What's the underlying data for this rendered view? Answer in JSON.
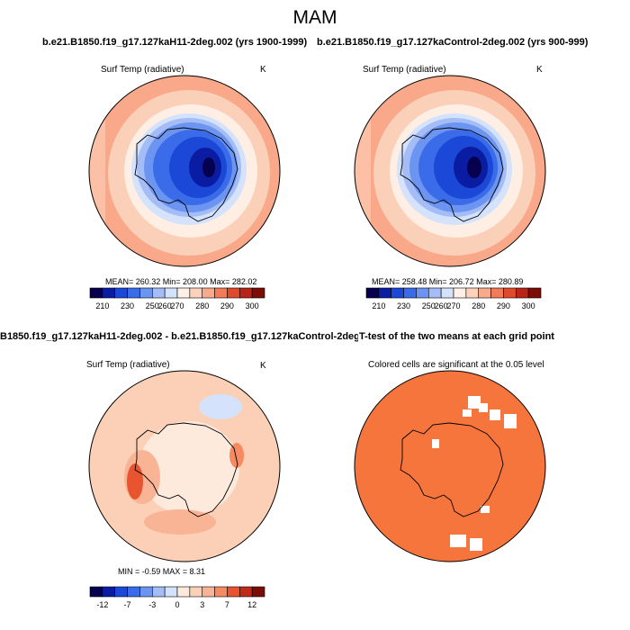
{
  "title": "MAM",
  "colors": {
    "temp_scale": [
      "#06004e",
      "#0a1ca2",
      "#1b48d6",
      "#3a6ce9",
      "#6c94f1",
      "#a4bdf6",
      "#d4e2fb",
      "#fff0e6",
      "#fcd2bd",
      "#f8aa8c",
      "#f37b58",
      "#e04a2c",
      "#b82518",
      "#7b0c06"
    ],
    "diff_scale": [
      "#06004e",
      "#0a1ca2",
      "#1b48d6",
      "#3a6ce9",
      "#6c94f1",
      "#a4bdf6",
      "#d4e2fb",
      "#fdeadd",
      "#fbd0b7",
      "#f9b495",
      "#f58a63",
      "#e8542f",
      "#c02b17",
      "#7b0c06"
    ],
    "significant": "#f5753d"
  },
  "panels": {
    "top_left": {
      "header": "b.e21.B1850.f19_g17.127kaH11-2deg.002 (yrs 1900-1999)",
      "variable": "Surf Temp (radiative)",
      "units": "K",
      "stats": "MEAN= 260.32  Min= 208.00  Max= 282.02",
      "colorbar_labels": [
        "210",
        "230",
        "250",
        "260",
        "270",
        "280",
        "290",
        "300"
      ]
    },
    "top_right": {
      "header": "b.e21.B1850.f19_g17.127kaControl-2deg.002 (yrs 900-999)",
      "variable": "Surf Temp (radiative)",
      "units": "K",
      "stats": "MEAN= 258.48  Min= 206.72  Max= 280.89",
      "colorbar_labels": [
        "210",
        "230",
        "250",
        "260",
        "270",
        "280",
        "290",
        "300"
      ]
    },
    "bottom_left": {
      "header": "B1850.f19_g17.127kaH11-2deg.002 - b.e21.B1850.f19_g17.127kaControl-2deg.002",
      "variable": "Surf Temp (radiative)",
      "units": "K",
      "stats": "MIN =  -0.59 MAX =   8.31",
      "colorbar_labels": [
        "-12",
        "-7",
        "-3",
        "0",
        "3",
        "7",
        "12"
      ]
    },
    "bottom_right": {
      "header": "T-test of the two means at each grid point",
      "subtitle": "Colored cells are significant at the 0.05 level"
    }
  }
}
